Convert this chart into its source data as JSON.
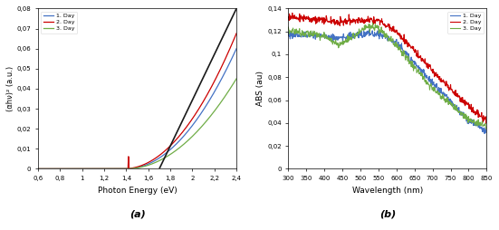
{
  "panel_a": {
    "xlabel": "Photon Energy (eV)",
    "ylabel": "(αhν)² (a.u.)",
    "label": "(a)",
    "xlim": [
      0.6,
      2.4
    ],
    "ylim": [
      0.0,
      0.08
    ],
    "ytick_vals": [
      0.0,
      0.01,
      0.02,
      0.03,
      0.04,
      0.05,
      0.06,
      0.07,
      0.08
    ],
    "ytick_labels": [
      "0",
      "0,01",
      "0,02",
      "0,03",
      "0,04",
      "0,05",
      "0,06",
      "0,07",
      "0,08"
    ],
    "xtick_vals": [
      0.6,
      0.8,
      1.0,
      1.2,
      1.4,
      1.6,
      1.8,
      2.0,
      2.2,
      2.4
    ],
    "xtick_labels": [
      "0,6",
      "0,8",
      "1",
      "1,2",
      "1,4",
      "1,6",
      "1,8",
      "2",
      "2,2",
      "2,4"
    ],
    "legend": [
      "1. Day",
      "2. Day",
      "3. Day"
    ],
    "colors": [
      "#4472c4",
      "#cc0000",
      "#70ad47"
    ],
    "tangent_color": "#1a1a1a"
  },
  "panel_b": {
    "xlabel": "Wavelength (nm)",
    "ylabel": "ABS (au)",
    "label": "(b)",
    "xlim": [
      300,
      850
    ],
    "ylim": [
      0.0,
      0.14
    ],
    "ytick_vals": [
      0.0,
      0.02,
      0.04,
      0.06,
      0.08,
      0.1,
      0.12,
      0.14
    ],
    "ytick_labels": [
      "0",
      "0,02",
      "0,04",
      "0,06",
      "0,08",
      "0,1",
      "0,12",
      "0,14"
    ],
    "xtick_vals": [
      300,
      350,
      400,
      450,
      500,
      550,
      600,
      650,
      700,
      750,
      800,
      850
    ],
    "xtick_labels": [
      "300",
      "350",
      "400",
      "450",
      "500",
      "550",
      "600",
      "650",
      "700",
      "750",
      "800",
      "850"
    ],
    "legend": [
      "1. Day",
      "2. Day",
      "3. Day"
    ],
    "colors": [
      "#4472c4",
      "#cc0000",
      "#70ad47"
    ]
  }
}
